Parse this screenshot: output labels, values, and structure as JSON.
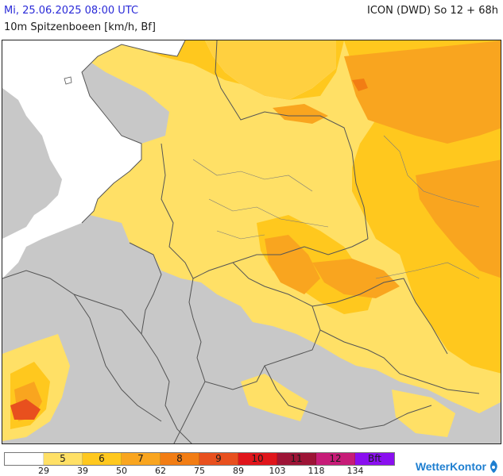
{
  "header": {
    "valid_time": "Mi, 25.06.2025 08:00 UTC",
    "model_run": "ICON (DWD) So 12 + 68h",
    "parameter": "10m Spitzenboeen [km/h, Bf]"
  },
  "legend": {
    "segments": [
      {
        "label": "",
        "color": "#ffffff"
      },
      {
        "label": "5",
        "color": "#ffe066"
      },
      {
        "label": "6",
        "color": "#ffc81e"
      },
      {
        "label": "7",
        "color": "#f9a51f"
      },
      {
        "label": "8",
        "color": "#f27d14"
      },
      {
        "label": "9",
        "color": "#e8501e"
      },
      {
        "label": "10",
        "color": "#e0151b"
      },
      {
        "label": "11",
        "color": "#9d1436"
      },
      {
        "label": "12",
        "color": "#c71c78"
      },
      {
        "label": "Bft",
        "color": "#8a0ff0"
      }
    ],
    "ticks": [
      "29",
      "39",
      "50",
      "62",
      "75",
      "89",
      "103",
      "118",
      "134"
    ]
  },
  "map": {
    "colors": {
      "sea": "#ffffff",
      "land_below_threshold": "#c8c8c8",
      "bft5": "#ffe066",
      "bft6": "#ffc81e",
      "bft7": "#f9a51f",
      "bft8": "#f27d14",
      "bft9": "#e8501e",
      "borders": "#555555"
    }
  },
  "brand": {
    "name": "WetterKontor",
    "logo_icon": "wetterkontor-logo-icon"
  }
}
